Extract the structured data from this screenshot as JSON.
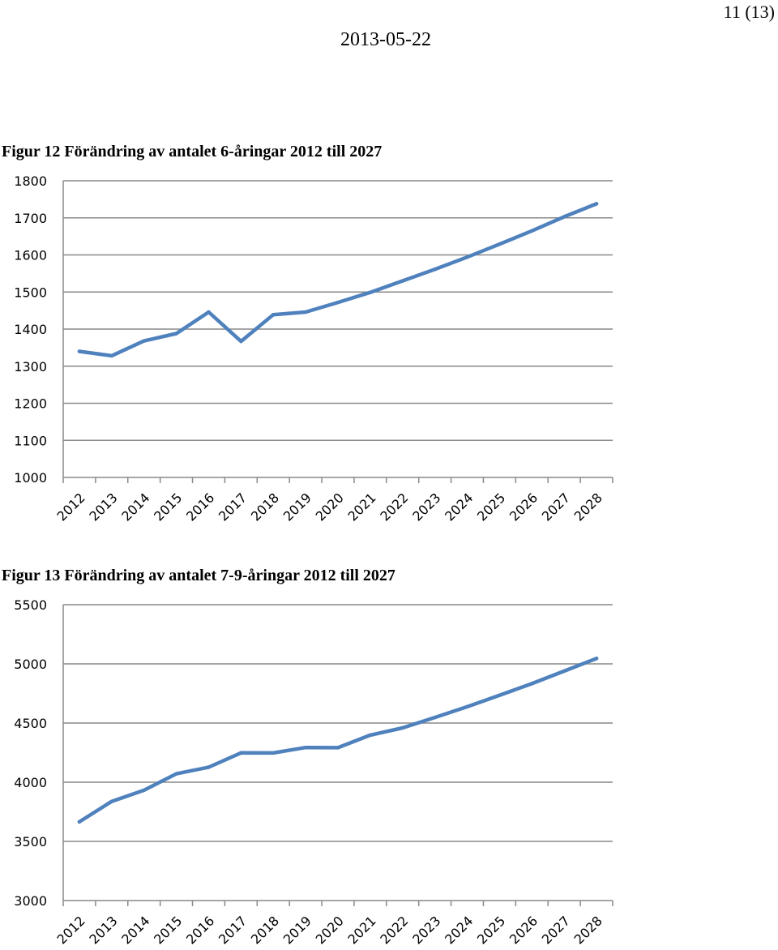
{
  "header": {
    "page_number": "11 (13)",
    "date": "2013-05-22"
  },
  "chart_data": [
    {
      "type": "line",
      "title": "Figur 12 Förändring av antalet 6-åringar 2012 till 2027",
      "xlabel": "",
      "ylabel": "",
      "categories": [
        "2012",
        "2013",
        "2014",
        "2015",
        "2016",
        "2017",
        "2018",
        "2019",
        "2020",
        "2021",
        "2022",
        "2023",
        "2024",
        "2025",
        "2026",
        "2027",
        "2028"
      ],
      "y_ticks": [
        1000,
        1100,
        1200,
        1300,
        1400,
        1500,
        1600,
        1700,
        1800
      ],
      "ylim": [
        1000,
        1800
      ],
      "grid": true,
      "legend": "none",
      "color": "#4f81bd",
      "series": [
        {
          "values": [
            1340,
            1328,
            1368,
            1388,
            1446,
            1367,
            1439,
            1446,
            1472,
            1499,
            1530,
            1561,
            1594,
            1629,
            1665,
            1703,
            1738
          ]
        }
      ]
    },
    {
      "type": "line",
      "title": "Figur 13 Förändring av antalet 7-9-åringar 2012 till 2027",
      "xlabel": "",
      "ylabel": "",
      "categories": [
        "2012",
        "2013",
        "2014",
        "2015",
        "2016",
        "2017",
        "2018",
        "2019",
        "2020",
        "2021",
        "2022",
        "2023",
        "2024",
        "2025",
        "2026",
        "2027",
        "2028"
      ],
      "y_ticks": [
        3000,
        3500,
        4000,
        4500,
        5000,
        5500
      ],
      "ylim": [
        3000,
        5500
      ],
      "grid": true,
      "legend": "none",
      "color": "#4f81bd",
      "series": [
        {
          "values": [
            3665,
            3838,
            3932,
            4071,
            4127,
            4248,
            4247,
            4293,
            4292,
            4398,
            4459,
            4547,
            4638,
            4735,
            4833,
            4939,
            5046
          ]
        }
      ]
    }
  ]
}
